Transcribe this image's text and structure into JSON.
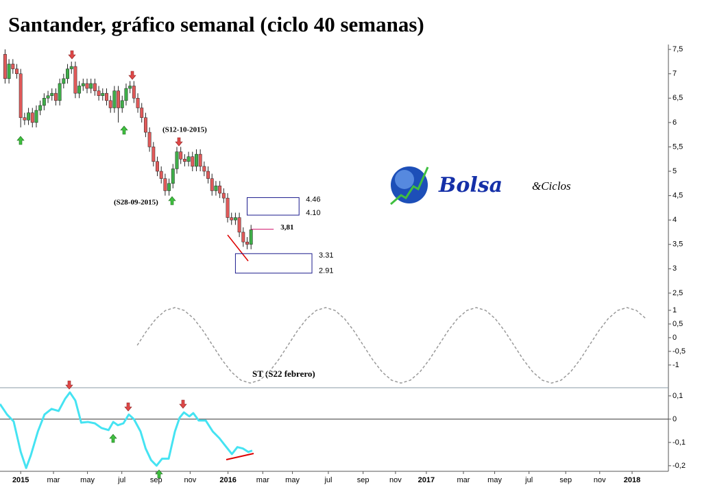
{
  "chart_data": [
    {
      "type": "candlestick",
      "title": "Santander, gráfico semanal (ciclo 40 semanas)",
      "x": [
        -4,
        -3,
        -2,
        -1,
        0,
        1,
        2,
        3,
        4,
        5,
        6,
        7,
        8,
        9,
        10,
        11,
        12,
        13,
        14,
        15,
        16,
        17,
        18,
        19,
        20,
        21,
        22,
        23,
        24,
        25,
        26,
        27,
        28,
        29,
        30,
        31,
        32,
        33,
        34,
        35,
        36,
        37,
        38,
        39,
        40,
        41,
        42,
        43,
        44,
        45,
        46,
        47,
        48,
        49,
        50,
        51,
        52,
        53,
        54,
        55,
        56,
        57,
        58,
        59
      ],
      "open": [
        7.4,
        6.9,
        7.2,
        7.1,
        7.0,
        6.1,
        6.05,
        6.2,
        6.0,
        6.25,
        6.35,
        6.5,
        6.55,
        6.6,
        6.45,
        6.8,
        6.9,
        7.1,
        7.15,
        6.6,
        6.75,
        6.8,
        6.7,
        6.8,
        6.65,
        6.55,
        6.6,
        6.45,
        6.3,
        6.65,
        6.3,
        6.45,
        6.7,
        6.75,
        6.5,
        6.3,
        6.1,
        5.8,
        5.5,
        5.2,
        5.0,
        4.85,
        4.6,
        4.75,
        5.05,
        5.4,
        5.25,
        5.2,
        5.3,
        5.1,
        5.35,
        5.1,
        5.0,
        4.85,
        4.6,
        4.7,
        4.55,
        4.45,
        4.05,
        4.0,
        4.05,
        3.75,
        3.55,
        3.5
      ],
      "high": [
        7.5,
        7.3,
        7.3,
        7.2,
        7.1,
        6.2,
        6.3,
        6.3,
        6.35,
        6.45,
        6.6,
        6.65,
        6.7,
        6.7,
        6.9,
        7.0,
        7.2,
        7.25,
        7.25,
        6.85,
        6.9,
        6.9,
        6.9,
        6.9,
        6.75,
        6.7,
        6.7,
        6.55,
        6.75,
        6.75,
        6.55,
        6.8,
        6.85,
        6.85,
        6.6,
        6.4,
        6.2,
        5.9,
        5.6,
        5.3,
        5.1,
        4.95,
        4.85,
        5.15,
        5.5,
        5.5,
        5.35,
        5.4,
        5.4,
        5.45,
        5.45,
        5.2,
        5.1,
        4.95,
        4.8,
        4.8,
        4.65,
        4.55,
        4.15,
        4.15,
        4.15,
        3.85,
        3.65,
        3.9
      ],
      "low": [
        6.8,
        6.8,
        7.0,
        6.9,
        5.9,
        5.95,
        5.95,
        5.9,
        5.9,
        6.15,
        6.25,
        6.4,
        6.45,
        6.35,
        6.35,
        6.7,
        6.8,
        7.0,
        6.5,
        6.5,
        6.65,
        6.6,
        6.6,
        6.55,
        6.45,
        6.45,
        6.35,
        6.2,
        6.2,
        6.0,
        6.2,
        6.35,
        6.6,
        6.4,
        6.2,
        6.0,
        5.7,
        5.4,
        5.1,
        4.9,
        4.75,
        4.5,
        4.5,
        4.65,
        4.95,
        5.15,
        5.1,
        5.1,
        5.0,
        5.0,
        5.0,
        4.9,
        4.75,
        4.5,
        4.5,
        4.45,
        4.35,
        3.95,
        3.9,
        3.9,
        3.65,
        3.45,
        3.4,
        3.4
      ],
      "close": [
        6.9,
        7.2,
        7.1,
        7.0,
        6.1,
        6.05,
        6.2,
        6.0,
        6.25,
        6.35,
        6.5,
        6.55,
        6.6,
        6.45,
        6.8,
        6.9,
        7.1,
        7.15,
        6.6,
        6.75,
        6.8,
        6.7,
        6.8,
        6.65,
        6.55,
        6.6,
        6.45,
        6.3,
        6.65,
        6.3,
        6.45,
        6.7,
        6.75,
        6.5,
        6.3,
        6.1,
        5.8,
        5.5,
        5.2,
        5.0,
        4.85,
        4.6,
        4.75,
        5.05,
        5.4,
        5.25,
        5.2,
        5.3,
        5.1,
        5.35,
        5.1,
        5.0,
        4.85,
        4.6,
        4.7,
        4.55,
        4.45,
        4.05,
        4.0,
        4.05,
        3.75,
        3.55,
        3.5,
        3.8
      ],
      "up_color": "#3fae49",
      "down_color": "#e15a5a",
      "xlim": [
        -5.3,
        165.9
      ],
      "ylim": [
        2.33,
        7.6
      ],
      "yticks": [
        {
          "value": 2.5,
          "label": "2,5"
        },
        3,
        {
          "value": 3.5,
          "label": "3,5"
        },
        4,
        {
          "value": 4.5,
          "label": "4,5"
        },
        5,
        {
          "value": 5.5,
          "label": "5,5"
        },
        6,
        {
          "value": 6.5,
          "label": "6,5"
        },
        7,
        {
          "value": 7.5,
          "label": "7,5"
        }
      ],
      "annotations": [
        "(S12-10-2015)",
        "(S28-09-2015)"
      ],
      "last_price": {
        "value": 3.81,
        "label": "3,81",
        "color": "#d0106a"
      },
      "zones": [
        {
          "values": [
            4.46,
            4.1
          ],
          "value_labels": [
            "4.46",
            "4.10"
          ],
          "x": [
            58,
            71.3
          ],
          "color": "#1a1a8c"
        },
        {
          "values": [
            3.31,
            2.91
          ],
          "value_labels": [
            "3.31",
            "2.91"
          ],
          "x": [
            55,
            74.6
          ],
          "color": "#1a1a8c"
        }
      ]
    },
    {
      "type": "line",
      "annotation": "ST (S22 febrero)",
      "color": "#999999",
      "dashed": true,
      "x": [
        29.85,
        32.26,
        34.68,
        37.09,
        39.5,
        41.91,
        44.33,
        46.74,
        49.15,
        51.56,
        53.98,
        56.39,
        58.8,
        61.21,
        63.63,
        66.04,
        68.45,
        70.86,
        73.28,
        75.69,
        78.1,
        80.51,
        82.93,
        85.34,
        87.75,
        90.16,
        92.58,
        94.99,
        97.4,
        99.81,
        102.23,
        104.64,
        107.05,
        109.46,
        111.88,
        114.29,
        116.7,
        119.11,
        121.53,
        123.94,
        126.35,
        128.76,
        131.18,
        133.59,
        136.0,
        138.41,
        140.83,
        143.24,
        145.65,
        148.06,
        150.48,
        152.89,
        155.3,
        157.71,
        160.13
      ],
      "values": [
        -0.28,
        0.249,
        0.696,
        0.995,
        1.1,
        0.995,
        0.696,
        0.249,
        -0.28,
        -0.809,
        -1.256,
        -1.555,
        -1.66,
        -1.555,
        -1.256,
        -0.809,
        -0.28,
        0.249,
        0.696,
        0.995,
        1.1,
        0.995,
        0.696,
        0.249,
        -0.28,
        -0.809,
        -1.256,
        -1.555,
        -1.66,
        -1.555,
        -1.256,
        -0.809,
        -0.28,
        0.249,
        0.696,
        0.995,
        1.1,
        0.995,
        0.696,
        0.249,
        -0.28,
        -0.809,
        -1.256,
        -1.555,
        -1.66,
        -1.555,
        -1.256,
        -0.809,
        -0.28,
        0.249,
        0.696,
        0.995,
        1.1,
        0.995,
        0.696
      ],
      "xlim": [
        -5.3,
        165.9
      ],
      "ylim": [
        -1.83,
        1.2
      ],
      "yticks": [
        -1,
        {
          "value": -0.5,
          "label": "-0,5"
        },
        0,
        {
          "value": 0.5,
          "label": "0,5"
        },
        1
      ]
    },
    {
      "type": "line",
      "color": "#45e3f2",
      "baseline": 0,
      "x": [
        -5.3,
        -3.5,
        -1.8,
        0,
        1.4,
        2.6,
        4.4,
        6.1,
        7.9,
        9.7,
        11.4,
        12.6,
        14.0,
        15.5,
        17.2,
        19.0,
        20.7,
        22.5,
        23.7,
        24.9,
        26.3,
        27.7,
        29.0,
        30.7,
        32.0,
        33.4,
        34.8,
        36.2,
        37.9,
        39.5,
        40.7,
        41.8,
        43.2,
        44.2,
        45.6,
        47.4,
        49.2,
        50.9,
        52.3,
        54.1,
        55.5,
        56.9,
        58.3,
        59.3
      ],
      "values": [
        0.065,
        0.02,
        -0.01,
        -0.14,
        -0.21,
        -0.155,
        -0.053,
        0.02,
        0.044,
        0.035,
        0.088,
        0.115,
        0.08,
        -0.015,
        -0.012,
        -0.018,
        -0.038,
        -0.047,
        -0.012,
        -0.026,
        -0.018,
        0.02,
        0,
        -0.053,
        -0.126,
        -0.176,
        -0.2,
        -0.17,
        -0.17,
        -0.053,
        0.006,
        0.029,
        0.012,
        0.026,
        -0.006,
        -0.006,
        -0.053,
        -0.082,
        -0.112,
        -0.15,
        -0.12,
        -0.126,
        -0.141,
        -0.135
      ],
      "xlim": [
        -5.3,
        165.9
      ],
      "ylim": [
        -0.224,
        0.135
      ],
      "yticks": [
        {
          "value": -0.2,
          "label": "-0,2"
        },
        {
          "value": -0.1,
          "label": "-0,1"
        },
        0,
        {
          "value": 0.1,
          "label": "0,1"
        }
      ],
      "xticks": [
        {
          "value": 0,
          "label": "2015"
        },
        {
          "value": 8.4,
          "label": "mar"
        },
        {
          "value": 17.1,
          "label": "may"
        },
        {
          "value": 25.9,
          "label": "jul"
        },
        {
          "value": 34.7,
          "label": "sep"
        },
        {
          "value": 43.4,
          "label": "nov"
        },
        {
          "value": 53.1,
          "label": "2016"
        },
        {
          "value": 62,
          "label": "mar"
        },
        {
          "value": 69.6,
          "label": "may"
        },
        {
          "value": 78.8,
          "label": "jul"
        },
        {
          "value": 87.7,
          "label": "sep"
        },
        {
          "value": 96,
          "label": "nov"
        },
        {
          "value": 103.9,
          "label": "2017"
        },
        {
          "value": 113.4,
          "label": "mar"
        },
        {
          "value": 121.4,
          "label": "may"
        },
        {
          "value": 130.2,
          "label": "jul"
        },
        {
          "value": 139.6,
          "label": "sep"
        },
        {
          "value": 148.3,
          "label": "nov"
        },
        {
          "value": 156.6,
          "label": "2018"
        }
      ]
    }
  ],
  "logo": {
    "text": "Bolsa",
    "subtext": "&Ciclos"
  }
}
